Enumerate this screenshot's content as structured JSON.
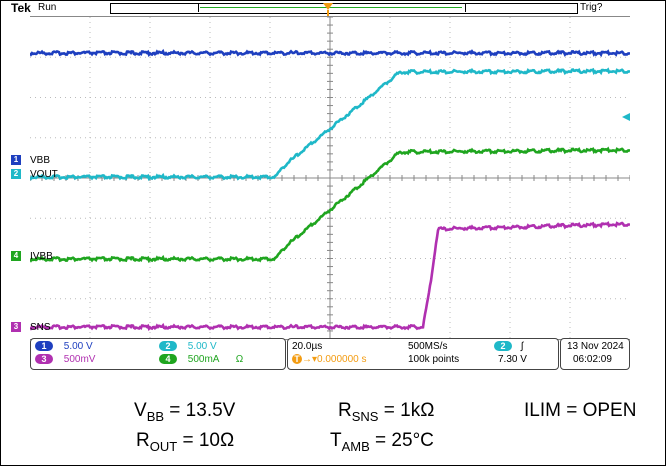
{
  "header": {
    "brand": "Tek",
    "state": "Run",
    "trigger_status": "Trig?"
  },
  "trigger_marker": "T",
  "channels": [
    {
      "num": "1",
      "label": "VBB",
      "color": "#1e3fbf",
      "scale": "5.00 V"
    },
    {
      "num": "2",
      "label": "VOUT",
      "color": "#1fb8c8",
      "scale": "5.00 V"
    },
    {
      "num": "3",
      "label": "SNS",
      "color": "#b030b0",
      "scale": "500mV"
    },
    {
      "num": "4",
      "label": "IVBB",
      "color": "#1fa51f",
      "scale": "500mA",
      "extra": "Ω"
    }
  ],
  "timebase": {
    "scale": "20.0µs",
    "sample_rate": "500MS/s",
    "position": "0.000000 s",
    "record": "100k points"
  },
  "trigger": {
    "source": "2",
    "slope": "∫",
    "level": "7.30 V"
  },
  "datetime": {
    "date": "13 Nov  2024",
    "time": "06:02:09"
  },
  "conditions": {
    "vbb_sym": "V",
    "vbb_sub": "BB",
    "vbb_val": " = 13.5V",
    "rsns_sym": "R",
    "rsns_sub": "SNS",
    "rsns_val": " = 1kΩ",
    "ilim": "ILIM = OPEN",
    "rout_sym": "R",
    "rout_sub": "OUT",
    "rout_val": " = 10Ω",
    "tamb_sym": "T",
    "tamb_sub": "AMB",
    "tamb_val": " = 25°C"
  },
  "colors": {
    "ch1": "#1e3fbf",
    "ch2": "#1fb8c8",
    "ch3": "#b030b0",
    "ch4": "#1fa51f",
    "trigger": "#f39c12"
  }
}
